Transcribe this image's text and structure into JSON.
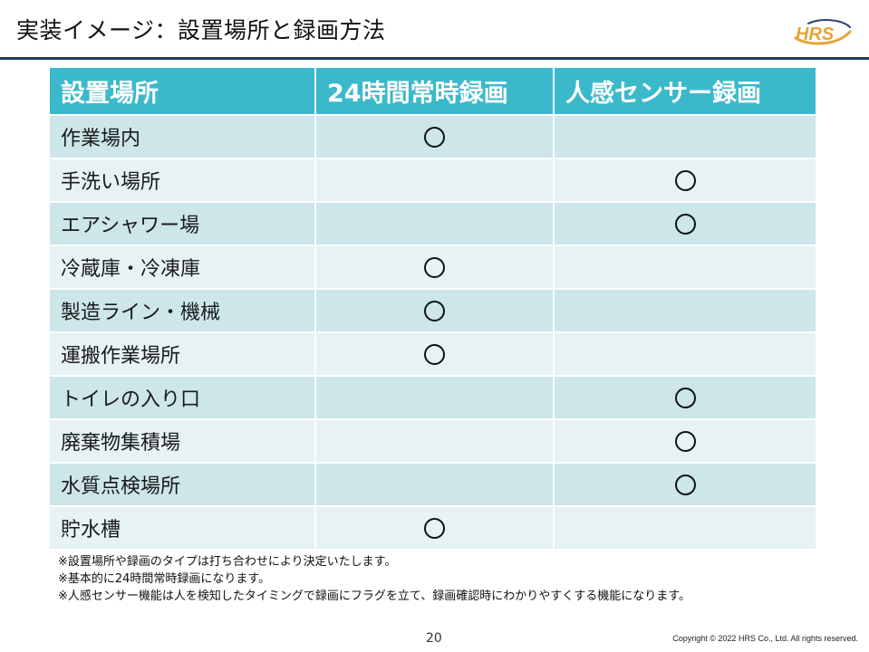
{
  "slide": {
    "title": "実装イメージ：設置場所と録画方法",
    "logo_text": "HRS",
    "page_number": "20",
    "copyright": "Copyright © 2022 HRS Co., Ltd. All rights reserved."
  },
  "table": {
    "headers": [
      "設置場所",
      "24時間常時録画",
      "人感センサー録画"
    ],
    "mark_symbol": "○",
    "rows": [
      {
        "location": "作業場内",
        "always": true,
        "sensor": false
      },
      {
        "location": "手洗い場所",
        "always": false,
        "sensor": true
      },
      {
        "location": "エアシャワー場",
        "always": false,
        "sensor": true
      },
      {
        "location": "冷蔵庫・冷凍庫",
        "always": true,
        "sensor": false
      },
      {
        "location": "製造ライン・機械",
        "always": true,
        "sensor": false
      },
      {
        "location": "運搬作業場所",
        "always": true,
        "sensor": false
      },
      {
        "location": "トイレの入り口",
        "always": false,
        "sensor": true
      },
      {
        "location": "廃棄物集積場",
        "always": false,
        "sensor": true
      },
      {
        "location": "水質点検場所",
        "always": false,
        "sensor": true
      },
      {
        "location": "貯水槽",
        "always": true,
        "sensor": false
      }
    ]
  },
  "notes": [
    "※設置場所や録画のタイプは打ち合わせにより決定いたします。",
    "※基本的に24時間常時録画になります。",
    "※人感センサー機能は人を検知したタイミングで録画にフラグを立て、録画確認時にわかりやすくする機能になります。"
  ],
  "colors": {
    "header_bg": "#3bb9cb",
    "row_odd": "#cce6ea",
    "row_even": "#e6f2f4",
    "rule": "#1f3a5c",
    "logo_orange": "#e8a33a",
    "logo_navy": "#2b3f7a"
  }
}
